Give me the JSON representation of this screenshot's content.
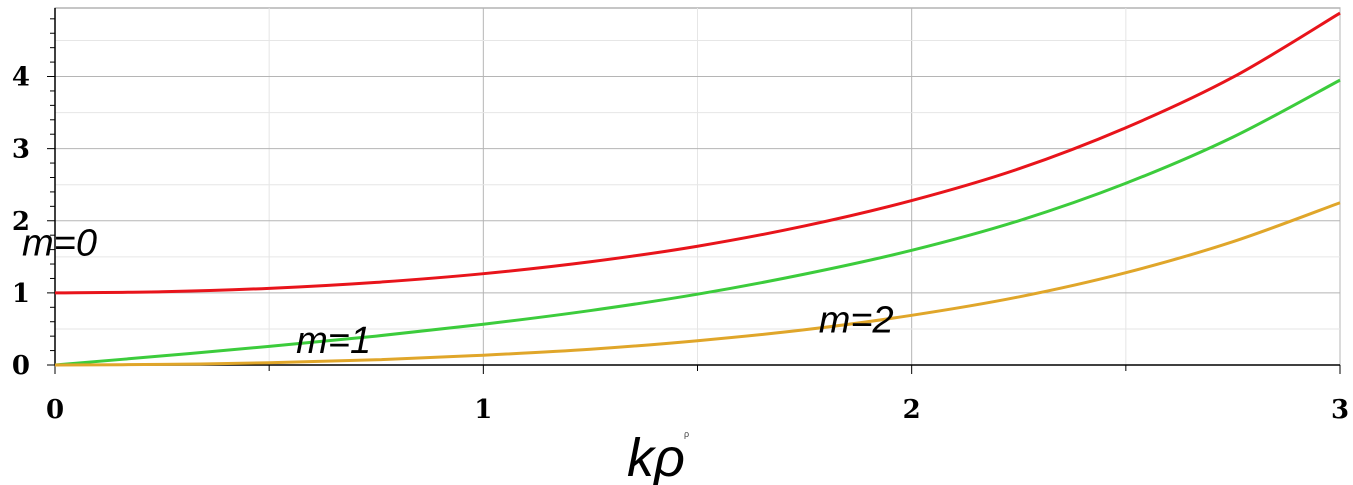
{
  "chart_data": {
    "type": "line",
    "xlabel": "kρ",
    "xlabel_mark": "ρ",
    "xlim": [
      0,
      3
    ],
    "ylim": [
      0,
      4.95
    ],
    "x_ticks": [
      "0",
      "1",
      "2",
      "3"
    ],
    "y_ticks": [
      "0",
      "1",
      "2",
      "3",
      "4"
    ],
    "grid": true,
    "series": [
      {
        "name": "m=0",
        "color": "#e8141b",
        "x": [
          0,
          0.25,
          0.5,
          0.75,
          1.0,
          1.25,
          1.5,
          1.75,
          2.0,
          2.25,
          2.5,
          2.75,
          3.0
        ],
        "y": [
          1.0,
          1.016,
          1.063,
          1.146,
          1.266,
          1.431,
          1.647,
          1.928,
          2.28,
          2.72,
          3.29,
          3.99,
          4.88
        ]
      },
      {
        "name": "m=1",
        "color": "#3ccc3c",
        "x": [
          0,
          0.25,
          0.5,
          0.75,
          1.0,
          1.25,
          1.5,
          1.75,
          2.0,
          2.25,
          2.5,
          2.75,
          3.0
        ],
        "y": [
          0.0,
          0.126,
          0.258,
          0.401,
          0.565,
          0.755,
          0.982,
          1.26,
          1.59,
          2.0,
          2.52,
          3.16,
          3.95
        ]
      },
      {
        "name": "m=2",
        "color": "#e0a62a",
        "x": [
          0,
          0.25,
          0.5,
          0.75,
          1.0,
          1.25,
          1.5,
          1.75,
          2.0,
          2.25,
          2.5,
          2.75,
          3.0
        ],
        "y": [
          0.0,
          0.008,
          0.032,
          0.072,
          0.136,
          0.218,
          0.337,
          0.488,
          0.689,
          0.944,
          1.28,
          1.71,
          2.25
        ]
      }
    ],
    "annotations": [
      {
        "text": "m=0",
        "x": 0.0,
        "y": 1.7
      },
      {
        "text": "m=1",
        "x": 0.64,
        "y": 0.35
      },
      {
        "text": "m=2",
        "x": 1.86,
        "y": 0.63
      }
    ]
  }
}
